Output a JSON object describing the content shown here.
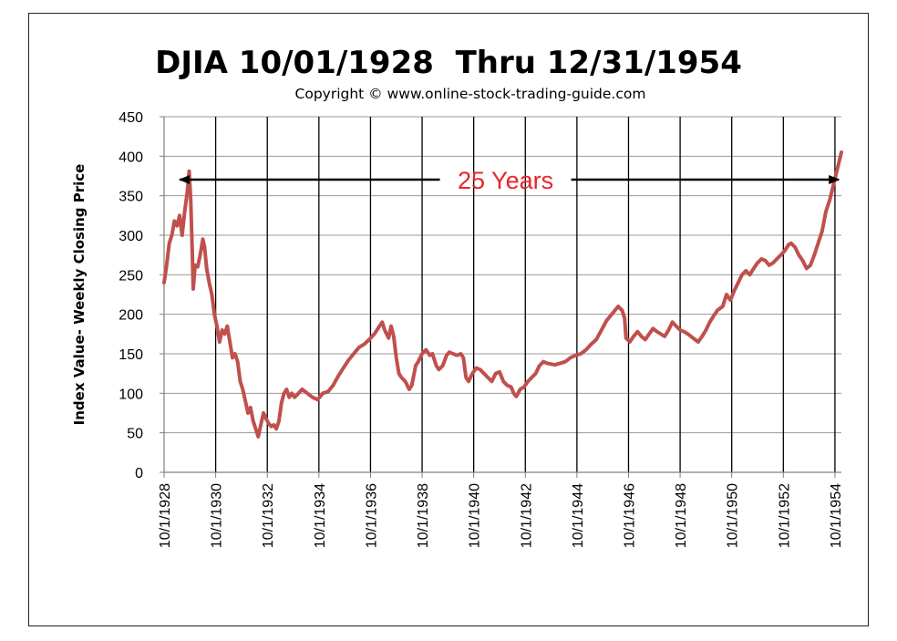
{
  "chart_data": {
    "type": "line",
    "title": "DJIA 10/01/1928  Thru 12/31/1954",
    "subtitle": "Copyright © www.online-stock-trading-guide.com",
    "xlabel": "",
    "ylabel": "Index Value- Weekly Closing Price",
    "xlim": [
      1928.75,
      1955.0
    ],
    "ylim": [
      0,
      450
    ],
    "y_ticks": [
      0,
      50,
      100,
      150,
      200,
      250,
      300,
      350,
      400,
      450
    ],
    "x_ticks": [
      {
        "pos": 1928.75,
        "label": "10/1/1928"
      },
      {
        "pos": 1930.75,
        "label": "10/1/1930"
      },
      {
        "pos": 1932.75,
        "label": "10/1/1932"
      },
      {
        "pos": 1934.75,
        "label": "10/1/1934"
      },
      {
        "pos": 1936.75,
        "label": "10/1/1936"
      },
      {
        "pos": 1938.75,
        "label": "10/1/1938"
      },
      {
        "pos": 1940.75,
        "label": "10/1/1940"
      },
      {
        "pos": 1942.75,
        "label": "10/1/1942"
      },
      {
        "pos": 1944.75,
        "label": "10/1/1944"
      },
      {
        "pos": 1946.75,
        "label": "10/1/1946"
      },
      {
        "pos": 1948.75,
        "label": "10/1/1948"
      },
      {
        "pos": 1950.75,
        "label": "10/1/1950"
      },
      {
        "pos": 1952.75,
        "label": "10/1/1952"
      },
      {
        "pos": 1954.75,
        "label": "10/1/1954"
      }
    ],
    "grid": true,
    "legend": "none",
    "line_color": "#c0504d",
    "annotation": {
      "text": "25 Years",
      "color": "#e8252e",
      "y": 375,
      "x_from": 1929.35,
      "x_to": 1954.9
    },
    "series": [
      {
        "points": [
          [
            1928.75,
            240
          ],
          [
            1928.85,
            262
          ],
          [
            1928.95,
            290
          ],
          [
            1929.05,
            300
          ],
          [
            1929.15,
            318
          ],
          [
            1929.25,
            312
          ],
          [
            1929.35,
            325
          ],
          [
            1929.45,
            300
          ],
          [
            1929.55,
            330
          ],
          [
            1929.65,
            355
          ],
          [
            1929.72,
            381
          ],
          [
            1929.78,
            345
          ],
          [
            1929.84,
            280
          ],
          [
            1929.88,
            232
          ],
          [
            1929.95,
            262
          ],
          [
            1930.05,
            260
          ],
          [
            1930.15,
            275
          ],
          [
            1930.25,
            295
          ],
          [
            1930.32,
            285
          ],
          [
            1930.4,
            258
          ],
          [
            1930.5,
            240
          ],
          [
            1930.6,
            225
          ],
          [
            1930.7,
            200
          ],
          [
            1930.8,
            185
          ],
          [
            1930.9,
            165
          ],
          [
            1931.0,
            180
          ],
          [
            1931.1,
            175
          ],
          [
            1931.2,
            185
          ],
          [
            1931.3,
            165
          ],
          [
            1931.4,
            145
          ],
          [
            1931.5,
            150
          ],
          [
            1931.6,
            140
          ],
          [
            1931.7,
            115
          ],
          [
            1931.8,
            105
          ],
          [
            1931.9,
            90
          ],
          [
            1932.0,
            75
          ],
          [
            1932.1,
            82
          ],
          [
            1932.2,
            65
          ],
          [
            1932.3,
            55
          ],
          [
            1932.4,
            45
          ],
          [
            1932.5,
            60
          ],
          [
            1932.6,
            75
          ],
          [
            1932.7,
            68
          ],
          [
            1932.8,
            62
          ],
          [
            1932.9,
            58
          ],
          [
            1933.0,
            60
          ],
          [
            1933.1,
            55
          ],
          [
            1933.2,
            65
          ],
          [
            1933.3,
            88
          ],
          [
            1933.4,
            100
          ],
          [
            1933.5,
            105
          ],
          [
            1933.6,
            95
          ],
          [
            1933.7,
            100
          ],
          [
            1933.8,
            95
          ],
          [
            1933.9,
            98
          ],
          [
            1934.1,
            105
          ],
          [
            1934.3,
            100
          ],
          [
            1934.5,
            95
          ],
          [
            1934.7,
            92
          ],
          [
            1934.9,
            100
          ],
          [
            1935.1,
            102
          ],
          [
            1935.3,
            110
          ],
          [
            1935.5,
            122
          ],
          [
            1935.7,
            132
          ],
          [
            1935.9,
            142
          ],
          [
            1936.1,
            150
          ],
          [
            1936.3,
            158
          ],
          [
            1936.5,
            162
          ],
          [
            1936.7,
            168
          ],
          [
            1936.9,
            175
          ],
          [
            1937.1,
            185
          ],
          [
            1937.2,
            190
          ],
          [
            1937.3,
            180
          ],
          [
            1937.45,
            170
          ],
          [
            1937.55,
            185
          ],
          [
            1937.65,
            172
          ],
          [
            1937.75,
            145
          ],
          [
            1937.85,
            125
          ],
          [
            1937.95,
            120
          ],
          [
            1938.1,
            115
          ],
          [
            1938.25,
            105
          ],
          [
            1938.35,
            110
          ],
          [
            1938.5,
            135
          ],
          [
            1938.6,
            140
          ],
          [
            1938.75,
            150
          ],
          [
            1938.9,
            155
          ],
          [
            1939.05,
            148
          ],
          [
            1939.15,
            150
          ],
          [
            1939.3,
            135
          ],
          [
            1939.4,
            130
          ],
          [
            1939.55,
            135
          ],
          [
            1939.7,
            148
          ],
          [
            1939.8,
            152
          ],
          [
            1939.95,
            150
          ],
          [
            1940.1,
            148
          ],
          [
            1940.25,
            150
          ],
          [
            1940.35,
            145
          ],
          [
            1940.45,
            120
          ],
          [
            1940.55,
            115
          ],
          [
            1940.7,
            125
          ],
          [
            1940.85,
            132
          ],
          [
            1941.0,
            130
          ],
          [
            1941.15,
            125
          ],
          [
            1941.3,
            120
          ],
          [
            1941.45,
            115
          ],
          [
            1941.6,
            125
          ],
          [
            1941.75,
            127
          ],
          [
            1941.9,
            115
          ],
          [
            1942.05,
            110
          ],
          [
            1942.2,
            108
          ],
          [
            1942.3,
            100
          ],
          [
            1942.4,
            96
          ],
          [
            1942.55,
            105
          ],
          [
            1942.7,
            108
          ],
          [
            1942.85,
            115
          ],
          [
            1943.0,
            120
          ],
          [
            1943.15,
            125
          ],
          [
            1943.3,
            135
          ],
          [
            1943.45,
            140
          ],
          [
            1943.6,
            138
          ],
          [
            1943.75,
            137
          ],
          [
            1943.9,
            136
          ],
          [
            1944.1,
            138
          ],
          [
            1944.3,
            140
          ],
          [
            1944.5,
            145
          ],
          [
            1944.7,
            148
          ],
          [
            1944.9,
            150
          ],
          [
            1945.1,
            155
          ],
          [
            1945.3,
            162
          ],
          [
            1945.5,
            168
          ],
          [
            1945.7,
            180
          ],
          [
            1945.9,
            192
          ],
          [
            1946.05,
            198
          ],
          [
            1946.2,
            204
          ],
          [
            1946.35,
            210
          ],
          [
            1946.5,
            205
          ],
          [
            1946.6,
            195
          ],
          [
            1946.65,
            170
          ],
          [
            1946.8,
            165
          ],
          [
            1946.95,
            172
          ],
          [
            1947.1,
            178
          ],
          [
            1947.25,
            172
          ],
          [
            1947.4,
            168
          ],
          [
            1947.55,
            175
          ],
          [
            1947.7,
            182
          ],
          [
            1947.85,
            178
          ],
          [
            1948.0,
            175
          ],
          [
            1948.15,
            172
          ],
          [
            1948.3,
            180
          ],
          [
            1948.45,
            190
          ],
          [
            1948.6,
            185
          ],
          [
            1948.75,
            180
          ],
          [
            1948.9,
            178
          ],
          [
            1949.05,
            175
          ],
          [
            1949.25,
            170
          ],
          [
            1949.45,
            165
          ],
          [
            1949.6,
            172
          ],
          [
            1949.75,
            180
          ],
          [
            1949.9,
            190
          ],
          [
            1950.05,
            198
          ],
          [
            1950.2,
            205
          ],
          [
            1950.4,
            210
          ],
          [
            1950.55,
            225
          ],
          [
            1950.7,
            218
          ],
          [
            1950.85,
            230
          ],
          [
            1951.0,
            240
          ],
          [
            1951.15,
            250
          ],
          [
            1951.3,
            255
          ],
          [
            1951.45,
            250
          ],
          [
            1951.6,
            258
          ],
          [
            1951.75,
            265
          ],
          [
            1951.9,
            270
          ],
          [
            1952.05,
            268
          ],
          [
            1952.2,
            262
          ],
          [
            1952.35,
            265
          ],
          [
            1952.5,
            270
          ],
          [
            1952.65,
            275
          ],
          [
            1952.8,
            280
          ],
          [
            1952.95,
            288
          ],
          [
            1953.05,
            290
          ],
          [
            1953.2,
            285
          ],
          [
            1953.35,
            275
          ],
          [
            1953.5,
            268
          ],
          [
            1953.65,
            258
          ],
          [
            1953.8,
            262
          ],
          [
            1953.95,
            275
          ],
          [
            1954.1,
            290
          ],
          [
            1954.25,
            305
          ],
          [
            1954.4,
            330
          ],
          [
            1954.55,
            345
          ],
          [
            1954.7,
            365
          ],
          [
            1954.85,
            385
          ],
          [
            1955.0,
            405
          ]
        ]
      }
    ]
  }
}
